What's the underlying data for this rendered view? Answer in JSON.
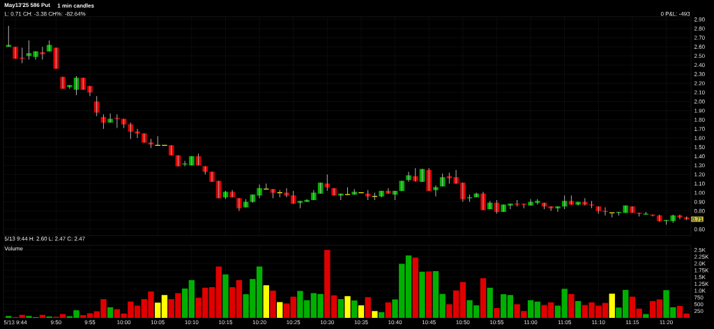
{
  "chart_data": [
    {
      "type": "candlestick",
      "title": "May13'25 586 Put",
      "subtitle": "1 min candles",
      "categories": [
        null,
        null,
        null,
        null,
        null,
        null,
        null,
        null,
        null,
        null,
        null,
        null,
        null,
        null,
        null,
        null,
        null,
        null,
        null,
        null,
        null,
        null,
        null,
        null,
        null,
        null,
        null,
        null,
        null,
        null,
        null,
        null,
        null,
        null,
        null,
        null,
        null,
        null,
        null,
        null,
        null,
        null,
        null,
        null,
        null,
        null,
        null,
        null,
        null,
        null,
        null,
        null,
        null,
        null,
        null,
        null,
        null,
        null,
        null,
        null,
        null,
        null,
        null,
        null,
        null,
        null,
        null,
        null,
        null,
        null,
        null,
        null,
        null,
        null,
        null,
        null,
        null,
        null,
        null,
        null,
        null,
        null,
        null,
        null,
        null,
        null,
        null,
        null,
        null,
        null,
        null,
        null,
        null,
        null,
        null,
        null,
        null,
        null,
        null,
        null,
        null
      ],
      "ohlc": [
        [
          2.6,
          2.83,
          2.6,
          2.62
        ],
        [
          2.6,
          2.6,
          2.47,
          2.47
        ],
        [
          2.48,
          2.59,
          2.42,
          2.47
        ],
        [
          2.5,
          2.67,
          2.46,
          2.53
        ],
        [
          2.49,
          2.55,
          2.46,
          2.55
        ],
        [
          2.54,
          2.6,
          2.46,
          2.52
        ],
        [
          2.55,
          2.67,
          2.55,
          2.62
        ],
        [
          2.59,
          2.59,
          2.36,
          2.36
        ],
        [
          2.27,
          2.27,
          2.14,
          2.14
        ],
        [
          2.16,
          2.18,
          2.14,
          2.18
        ],
        [
          2.13,
          2.28,
          2.07,
          2.26
        ],
        [
          2.26,
          2.26,
          2.13,
          2.13
        ],
        [
          2.17,
          2.17,
          2.06,
          2.1
        ],
        [
          2.0,
          2.06,
          1.84,
          1.88
        ],
        [
          1.83,
          1.86,
          1.7,
          1.77
        ],
        [
          1.77,
          1.87,
          1.77,
          1.81
        ],
        [
          1.82,
          1.86,
          1.71,
          1.81
        ],
        [
          1.81,
          1.81,
          1.71,
          1.75
        ],
        [
          1.75,
          1.77,
          1.59,
          1.67
        ],
        [
          1.67,
          1.7,
          1.6,
          1.65
        ],
        [
          1.65,
          1.65,
          1.55,
          1.55
        ],
        [
          1.55,
          1.59,
          1.49,
          1.53
        ],
        [
          1.52,
          1.62,
          1.52,
          1.52
        ],
        [
          1.52,
          1.52,
          1.52,
          1.52
        ],
        [
          1.52,
          1.52,
          1.41,
          1.41
        ],
        [
          1.41,
          1.41,
          1.29,
          1.29
        ],
        [
          1.31,
          1.35,
          1.29,
          1.32
        ],
        [
          1.3,
          1.4,
          1.3,
          1.4
        ],
        [
          1.4,
          1.43,
          1.3,
          1.3
        ],
        [
          1.29,
          1.29,
          1.2,
          1.23
        ],
        [
          1.23,
          1.23,
          1.12,
          1.12
        ],
        [
          1.13,
          1.13,
          0.94,
          0.94
        ],
        [
          0.95,
          1.02,
          0.93,
          1.01
        ],
        [
          1.01,
          1.03,
          0.95,
          0.95
        ],
        [
          0.94,
          0.94,
          0.8,
          0.83
        ],
        [
          0.84,
          0.93,
          0.84,
          0.9
        ],
        [
          0.9,
          0.98,
          0.89,
          0.98
        ],
        [
          0.97,
          1.09,
          0.94,
          1.05
        ],
        [
          1.04,
          1.1,
          1.04,
          1.04
        ],
        [
          1.04,
          1.04,
          0.94,
          1.0
        ],
        [
          1.0,
          1.03,
          0.95,
          1.0
        ],
        [
          1.0,
          1.05,
          0.95,
          0.97
        ],
        [
          0.97,
          1.02,
          0.88,
          0.88
        ],
        [
          0.89,
          0.91,
          0.83,
          0.91
        ],
        [
          0.9,
          0.93,
          0.9,
          0.92
        ],
        [
          0.92,
          1.03,
          0.92,
          1.0
        ],
        [
          0.99,
          1.11,
          0.99,
          1.11
        ],
        [
          1.1,
          1.2,
          1.02,
          1.06
        ],
        [
          1.05,
          1.05,
          0.97,
          0.97
        ],
        [
          0.97,
          0.99,
          0.92,
          0.99
        ],
        [
          0.98,
          1.06,
          0.98,
          0.98
        ],
        [
          0.98,
          1.04,
          0.98,
          1.01
        ],
        [
          1.0,
          1.0,
          1.0,
          1.0
        ],
        [
          0.99,
          1.03,
          0.92,
          0.96
        ],
        [
          0.96,
          1.0,
          0.92,
          0.96
        ],
        [
          0.96,
          1.02,
          0.95,
          1.02
        ],
        [
          1.02,
          1.05,
          0.99,
          0.99
        ],
        [
          0.98,
          1.02,
          0.92,
          1.02
        ],
        [
          1.02,
          1.13,
          1.02,
          1.13
        ],
        [
          1.14,
          1.23,
          1.12,
          1.19
        ],
        [
          1.18,
          1.27,
          1.12,
          1.13
        ],
        [
          1.12,
          1.26,
          1.12,
          1.26
        ],
        [
          1.25,
          1.27,
          1.02,
          1.02
        ],
        [
          1.03,
          1.08,
          0.96,
          1.06
        ],
        [
          1.07,
          1.21,
          1.07,
          1.17
        ],
        [
          1.18,
          1.22,
          1.1,
          1.16
        ],
        [
          1.17,
          1.25,
          1.1,
          1.1
        ],
        [
          1.11,
          1.11,
          0.9,
          0.93
        ],
        [
          0.94,
          0.98,
          0.9,
          0.95
        ],
        [
          0.95,
          1.0,
          0.95,
          0.99
        ],
        [
          0.99,
          1.01,
          0.81,
          0.81
        ],
        [
          0.82,
          0.91,
          0.82,
          0.89
        ],
        [
          0.89,
          0.92,
          0.77,
          0.79
        ],
        [
          0.79,
          0.87,
          0.79,
          0.87
        ],
        [
          0.86,
          0.88,
          0.82,
          0.88
        ],
        [
          0.88,
          0.92,
          0.85,
          0.87
        ],
        [
          0.88,
          0.88,
          0.83,
          0.87
        ],
        [
          0.86,
          0.93,
          0.86,
          0.9
        ],
        [
          0.89,
          0.93,
          0.87,
          0.91
        ],
        [
          0.89,
          0.89,
          0.82,
          0.85
        ],
        [
          0.85,
          0.85,
          0.8,
          0.83
        ],
        [
          0.83,
          0.85,
          0.79,
          0.85
        ],
        [
          0.85,
          0.97,
          0.82,
          0.91
        ],
        [
          0.91,
          0.97,
          0.87,
          0.87
        ],
        [
          0.87,
          0.9,
          0.86,
          0.9
        ],
        [
          0.9,
          0.94,
          0.86,
          0.87
        ],
        [
          0.87,
          0.91,
          0.83,
          0.86
        ],
        [
          0.85,
          0.85,
          0.77,
          0.8
        ],
        [
          0.8,
          0.84,
          0.75,
          0.79
        ],
        [
          0.78,
          0.78,
          0.73,
          0.78
        ],
        [
          0.78,
          0.79,
          0.75,
          0.79
        ],
        [
          0.78,
          0.86,
          0.78,
          0.86
        ],
        [
          0.85,
          0.85,
          0.78,
          0.78
        ],
        [
          0.78,
          0.78,
          0.74,
          0.77
        ],
        [
          0.76,
          0.79,
          0.76,
          0.77
        ],
        [
          0.76,
          0.76,
          0.74,
          0.75
        ],
        [
          0.75,
          0.76,
          0.68,
          0.69
        ],
        [
          0.69,
          0.7,
          0.65,
          0.7
        ],
        [
          0.69,
          0.76,
          0.67,
          0.75
        ],
        [
          0.75,
          0.76,
          0.71,
          0.73
        ],
        [
          0.73,
          0.74,
          0.7,
          0.71
        ]
      ],
      "colors": [
        "#00b000",
        "#e00000",
        "#e00000",
        "#00b000",
        "#00b000",
        "#e00000",
        "#00b000",
        "#e00000",
        "#e00000",
        "#00b000",
        "#00b000",
        "#e00000",
        "#e00000",
        "#e00000",
        "#e00000",
        "#00b000",
        "#e00000",
        "#e00000",
        "#e00000",
        "#e00000",
        "#e00000",
        "#e00000",
        "#ffff00",
        "#ffff00",
        "#e00000",
        "#e00000",
        "#00b000",
        "#00b000",
        "#e00000",
        "#e00000",
        "#e00000",
        "#e00000",
        "#00b000",
        "#e00000",
        "#e00000",
        "#00b000",
        "#00b000",
        "#00b000",
        "#ffff00",
        "#e00000",
        "#ffff00",
        "#e00000",
        "#e00000",
        "#00b000",
        "#00b000",
        "#00b000",
        "#00b000",
        "#e00000",
        "#e00000",
        "#00b000",
        "#ffff00",
        "#00b000",
        "#ffff00",
        "#e00000",
        "#ffff00",
        "#00b000",
        "#e00000",
        "#00b000",
        "#00b000",
        "#00b000",
        "#e00000",
        "#00b000",
        "#e00000",
        "#00b000",
        "#00b000",
        "#e00000",
        "#e00000",
        "#e00000",
        "#00b000",
        "#00b000",
        "#e00000",
        "#00b000",
        "#e00000",
        "#00b000",
        "#00b000",
        "#e00000",
        "#e00000",
        "#00b000",
        "#00b000",
        "#e00000",
        "#e00000",
        "#00b000",
        "#00b000",
        "#e00000",
        "#00b000",
        "#e00000",
        "#e00000",
        "#e00000",
        "#e00000",
        "#ffff00",
        "#00b000",
        "#00b000",
        "#e00000",
        "#e00000",
        "#00b000",
        "#e00000",
        "#e00000",
        "#00b000",
        "#00b000",
        "#e00000",
        "#e00000"
      ],
      "ylim": [
        0.53,
        2.93
      ],
      "yticks": [
        {
          "value": 0.6,
          "label": "0.60"
        },
        {
          "value": 0.7,
          "label": null
        },
        {
          "value": 0.8,
          "label": "0.80"
        },
        {
          "value": 0.9,
          "label": "0.90"
        },
        {
          "value": 1.0,
          "label": "1.00"
        },
        {
          "value": 1.1,
          "label": "1.10"
        },
        {
          "value": 1.2,
          "label": "1.20"
        },
        {
          "value": 1.3,
          "label": "1.30"
        },
        {
          "value": 1.4,
          "label": "1.40"
        },
        {
          "value": 1.5,
          "label": "1.50"
        },
        {
          "value": 1.6,
          "label": "1.60"
        },
        {
          "value": 1.7,
          "label": "1.70"
        },
        {
          "value": 1.8,
          "label": "1.80"
        },
        {
          "value": 1.9,
          "label": "1.90"
        },
        {
          "value": 2.0,
          "label": "2.00"
        },
        {
          "value": 2.1,
          "label": "2.10"
        },
        {
          "value": 2.2,
          "label": "2.20"
        },
        {
          "value": 2.3,
          "label": "2.30"
        },
        {
          "value": 2.4,
          "label": "2.40"
        },
        {
          "value": 2.5,
          "label": "2.50"
        },
        {
          "value": 2.6,
          "label": "2.60"
        },
        {
          "value": 2.7,
          "label": "2.70"
        },
        {
          "value": 2.8,
          "label": "2.80"
        },
        {
          "value": 2.9,
          "label": "2.90"
        }
      ],
      "grid": true,
      "tick_labels": "y",
      "annotations": [
        "L: 0.71 CH: -3.38 CH%: -82.64%",
        "0 P&L: -493",
        "5/13 9:44 H: 2.60 L: 2.47 C: 2.47",
        {
          "text": "0.71",
          "y": 0.71
        }
      ]
    },
    {
      "type": "bar",
      "categories": [
        null,
        "5/13 9:44",
        null,
        null,
        null,
        null,
        null,
        "9:50",
        null,
        null,
        null,
        null,
        "9:55",
        null,
        null,
        null,
        null,
        "10:00",
        null,
        null,
        null,
        null,
        "10:05",
        null,
        null,
        null,
        null,
        "10:10",
        null,
        null,
        null,
        null,
        "10:15",
        null,
        null,
        null,
        null,
        "10:20",
        null,
        null,
        null,
        null,
        "10:25",
        null,
        null,
        null,
        null,
        "10:30",
        null,
        null,
        null,
        null,
        "10:35",
        null,
        null,
        null,
        null,
        "10:40",
        null,
        null,
        null,
        null,
        "10:45",
        null,
        null,
        null,
        null,
        "10:50",
        null,
        null,
        null,
        null,
        "10:55",
        null,
        null,
        null,
        null,
        "11:00",
        null,
        null,
        null,
        null,
        "11:05",
        null,
        null,
        null,
        null,
        "11:10",
        null,
        null,
        null,
        null,
        "11:15",
        null,
        null,
        null,
        null,
        "11:20",
        null,
        null,
        null
      ],
      "values": [
        70,
        30,
        110,
        70,
        30,
        110,
        50,
        40,
        140,
        60,
        280,
        100,
        170,
        240,
        690,
        390,
        320,
        160,
        600,
        450,
        690,
        970,
        560,
        840,
        690,
        910,
        1080,
        1390,
        740,
        1110,
        1130,
        1890,
        1600,
        1130,
        1390,
        870,
        1430,
        1890,
        1200,
        1000,
        580,
        530,
        780,
        990,
        650,
        910,
        880,
        2500,
        830,
        690,
        800,
        640,
        460,
        760,
        250,
        210,
        570,
        680,
        1990,
        2300,
        2220,
        1700,
        1710,
        1720,
        880,
        500,
        1010,
        1320,
        650,
        460,
        1460,
        1110,
        360,
        870,
        840,
        500,
        250,
        650,
        600,
        470,
        570,
        450,
        1070,
        880,
        620,
        470,
        570,
        450,
        550,
        890,
        380,
        1030,
        780,
        340,
        140,
        620,
        680,
        1020,
        390,
        440,
        160
      ],
      "colors": [
        "#00b000",
        "#e00000",
        "#e00000",
        "#00b000",
        "#00b000",
        "#e00000",
        "#00b000",
        "#e00000",
        "#e00000",
        "#00b000",
        "#00b000",
        "#e00000",
        "#e00000",
        "#e00000",
        "#e00000",
        "#00b000",
        "#e00000",
        "#e00000",
        "#e00000",
        "#e00000",
        "#e00000",
        "#e00000",
        "#ffff00",
        "#ffff00",
        "#e00000",
        "#e00000",
        "#00b000",
        "#00b000",
        "#e00000",
        "#e00000",
        "#e00000",
        "#e00000",
        "#00b000",
        "#e00000",
        "#e00000",
        "#00b000",
        "#00b000",
        "#00b000",
        "#ffff00",
        "#e00000",
        "#ffff00",
        "#e00000",
        "#e00000",
        "#00b000",
        "#00b000",
        "#00b000",
        "#00b000",
        "#e00000",
        "#e00000",
        "#00b000",
        "#ffff00",
        "#00b000",
        "#ffff00",
        "#e00000",
        "#ffff00",
        "#00b000",
        "#e00000",
        "#00b000",
        "#00b000",
        "#00b000",
        "#e00000",
        "#00b000",
        "#e00000",
        "#00b000",
        "#00b000",
        "#e00000",
        "#e00000",
        "#e00000",
        "#00b000",
        "#00b000",
        "#e00000",
        "#00b000",
        "#e00000",
        "#00b000",
        "#00b000",
        "#e00000",
        "#e00000",
        "#00b000",
        "#00b000",
        "#e00000",
        "#e00000",
        "#00b000",
        "#00b000",
        "#e00000",
        "#00b000",
        "#e00000",
        "#e00000",
        "#e00000",
        "#e00000",
        "#ffff00",
        "#00b000",
        "#00b000",
        "#e00000",
        "#e00000",
        "#00b000",
        "#e00000",
        "#e00000",
        "#00b000",
        "#00b000",
        "#e00000",
        "#e00000"
      ],
      "ylim": [
        0,
        2670
      ],
      "yticks": [
        250,
        500,
        750,
        {
          "value": 1000,
          "label": "1.0K"
        },
        {
          "value": 1250,
          "label": "1.25K"
        },
        {
          "value": 1500,
          "label": "1.5K"
        },
        {
          "value": 1750,
          "label": "1.75K"
        },
        {
          "value": 2000,
          "label": "2.0K"
        },
        {
          "value": 2250,
          "label": "2.25K"
        },
        {
          "value": 2500,
          "label": "2.5K"
        }
      ],
      "grid": true,
      "annotations": [
        "Volume"
      ]
    }
  ]
}
